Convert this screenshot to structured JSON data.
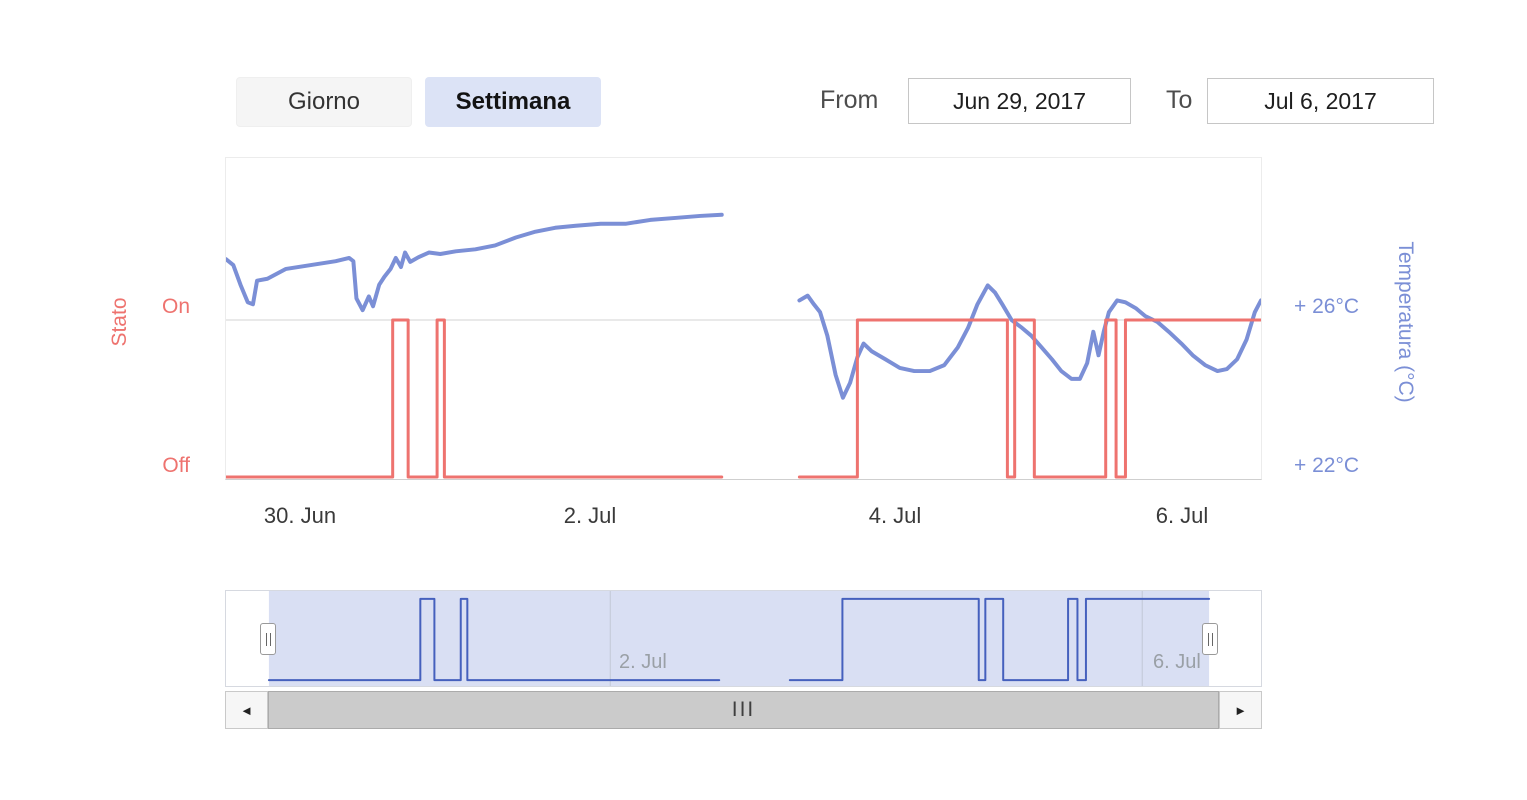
{
  "controls": {
    "giorno_label": "Giorno",
    "settimana_label": "Settimana",
    "from_label": "From",
    "from_value": "Jun 29, 2017",
    "to_label": "To",
    "to_value": "Jul 6, 2017"
  },
  "axes": {
    "left_title": "Stato",
    "left_tick_on": "On",
    "left_tick_off": "Off",
    "right_title": "Temperatura (°C)",
    "right_tick_top": "+ 26°C",
    "right_tick_bottom": "+ 22°C"
  },
  "navigator": {
    "label_left": "2. Jul",
    "label_right": "6. Jul"
  },
  "scrollbar": {
    "left_arrow": "◄",
    "right_arrow": "►",
    "grip": "III"
  },
  "colors": {
    "temperature_line": "#7b8fd6",
    "state_line": "#ee736f",
    "navigator_line": "#4560bd",
    "navigator_fill": "#d9dff3",
    "grid_line": "#e2e2e2",
    "navigator_grid": "#c2c8d6"
  },
  "chart_data": {
    "type": "line",
    "title": "",
    "x_unit": "fraction_of_visible_range",
    "x_range": [
      "Jun 29, 2017",
      "Jul 6, 2017"
    ],
    "x_ticks": [
      {
        "label": "30. Jun",
        "f": 0.072
      },
      {
        "label": "2. Jul",
        "f": 0.352
      },
      {
        "label": "4. Jul",
        "f": 0.646
      },
      {
        "label": "6. Jul",
        "f": 0.923
      }
    ],
    "y_axis_left": {
      "title": "Stato",
      "ticks": [
        "On",
        "Off"
      ],
      "values": [
        1,
        0
      ]
    },
    "y_axis_right": {
      "title": "Temperatura (°C)",
      "ticks": [
        "+ 26°C",
        "+ 22°C"
      ],
      "tick_values": [
        26,
        22
      ],
      "range": [
        22,
        30.1
      ]
    },
    "legend": "off",
    "grid": "horizontal-at-26",
    "series": [
      {
        "name": "Temperatura",
        "unit": "°C",
        "style": "line",
        "axis": "right",
        "segments": [
          [
            [
              0.0,
              27.55
            ],
            [
              0.007,
              27.4
            ],
            [
              0.014,
              26.9
            ],
            [
              0.021,
              26.45
            ],
            [
              0.026,
              26.4
            ],
            [
              0.03,
              27.0
            ],
            [
              0.04,
              27.05
            ],
            [
              0.058,
              27.3
            ],
            [
              0.082,
              27.4
            ],
            [
              0.106,
              27.5
            ],
            [
              0.119,
              27.58
            ],
            [
              0.123,
              27.5
            ],
            [
              0.126,
              26.55
            ],
            [
              0.132,
              26.25
            ],
            [
              0.138,
              26.6
            ],
            [
              0.142,
              26.35
            ],
            [
              0.148,
              26.9
            ],
            [
              0.153,
              27.1
            ],
            [
              0.159,
              27.3
            ],
            [
              0.164,
              27.58
            ],
            [
              0.169,
              27.35
            ],
            [
              0.173,
              27.72
            ],
            [
              0.178,
              27.48
            ],
            [
              0.186,
              27.6
            ],
            [
              0.196,
              27.72
            ],
            [
              0.207,
              27.68
            ],
            [
              0.222,
              27.75
            ],
            [
              0.241,
              27.8
            ],
            [
              0.26,
              27.9
            ],
            [
              0.28,
              28.1
            ],
            [
              0.299,
              28.25
            ],
            [
              0.318,
              28.35
            ],
            [
              0.338,
              28.4
            ],
            [
              0.362,
              28.45
            ],
            [
              0.386,
              28.45
            ],
            [
              0.41,
              28.55
            ],
            [
              0.434,
              28.6
            ],
            [
              0.458,
              28.65
            ],
            [
              0.479,
              28.68
            ]
          ],
          [
            [
              0.554,
              26.5
            ],
            [
              0.562,
              26.62
            ],
            [
              0.568,
              26.4
            ],
            [
              0.574,
              26.2
            ],
            [
              0.581,
              25.6
            ],
            [
              0.589,
              24.6
            ],
            [
              0.596,
              24.02
            ],
            [
              0.603,
              24.4
            ],
            [
              0.61,
              25.05
            ],
            [
              0.616,
              25.4
            ],
            [
              0.624,
              25.2
            ],
            [
              0.637,
              25.0
            ],
            [
              0.651,
              24.78
            ],
            [
              0.665,
              24.7
            ],
            [
              0.68,
              24.7
            ],
            [
              0.694,
              24.85
            ],
            [
              0.707,
              25.3
            ],
            [
              0.717,
              25.8
            ],
            [
              0.726,
              26.4
            ],
            [
              0.736,
              26.88
            ],
            [
              0.743,
              26.7
            ],
            [
              0.75,
              26.4
            ],
            [
              0.759,
              26.0
            ],
            [
              0.769,
              25.8
            ],
            [
              0.778,
              25.6
            ],
            [
              0.788,
              25.3
            ],
            [
              0.798,
              25.0
            ],
            [
              0.807,
              24.7
            ],
            [
              0.817,
              24.5
            ],
            [
              0.825,
              24.5
            ],
            [
              0.832,
              24.9
            ],
            [
              0.838,
              25.7
            ],
            [
              0.843,
              25.1
            ],
            [
              0.848,
              25.7
            ],
            [
              0.853,
              26.2
            ],
            [
              0.861,
              26.5
            ],
            [
              0.869,
              26.45
            ],
            [
              0.879,
              26.3
            ],
            [
              0.888,
              26.1
            ],
            [
              0.9,
              25.95
            ],
            [
              0.911,
              25.7
            ],
            [
              0.923,
              25.4
            ],
            [
              0.934,
              25.1
            ],
            [
              0.946,
              24.85
            ],
            [
              0.958,
              24.7
            ],
            [
              0.967,
              24.75
            ],
            [
              0.977,
              25.0
            ],
            [
              0.986,
              25.5
            ],
            [
              0.994,
              26.2
            ],
            [
              1.0,
              26.5
            ]
          ]
        ]
      },
      {
        "name": "Stato",
        "style": "step",
        "axis": "left",
        "values": {
          "on": 1,
          "off": 0
        },
        "segments": [
          [
            [
              0.0,
              0
            ],
            [
              0.161,
              0
            ],
            [
              0.161,
              1
            ],
            [
              0.176,
              1
            ],
            [
              0.176,
              0
            ],
            [
              0.204,
              0
            ],
            [
              0.204,
              1
            ],
            [
              0.211,
              1
            ],
            [
              0.211,
              0
            ],
            [
              0.479,
              0
            ]
          ],
          [
            [
              0.554,
              0
            ],
            [
              0.61,
              0
            ],
            [
              0.61,
              1
            ],
            [
              0.755,
              1
            ],
            [
              0.755,
              0
            ],
            [
              0.762,
              0
            ],
            [
              0.762,
              1
            ],
            [
              0.781,
              1
            ],
            [
              0.781,
              0
            ],
            [
              0.85,
              0
            ],
            [
              0.85,
              1
            ],
            [
              0.86,
              1
            ],
            [
              0.86,
              0
            ],
            [
              0.869,
              0
            ],
            [
              0.869,
              1
            ],
            [
              1.0,
              1
            ]
          ]
        ]
      }
    ],
    "navigator": {
      "shows_series": "Stato",
      "selected_range": [
        0.0,
        1.0
      ]
    }
  }
}
